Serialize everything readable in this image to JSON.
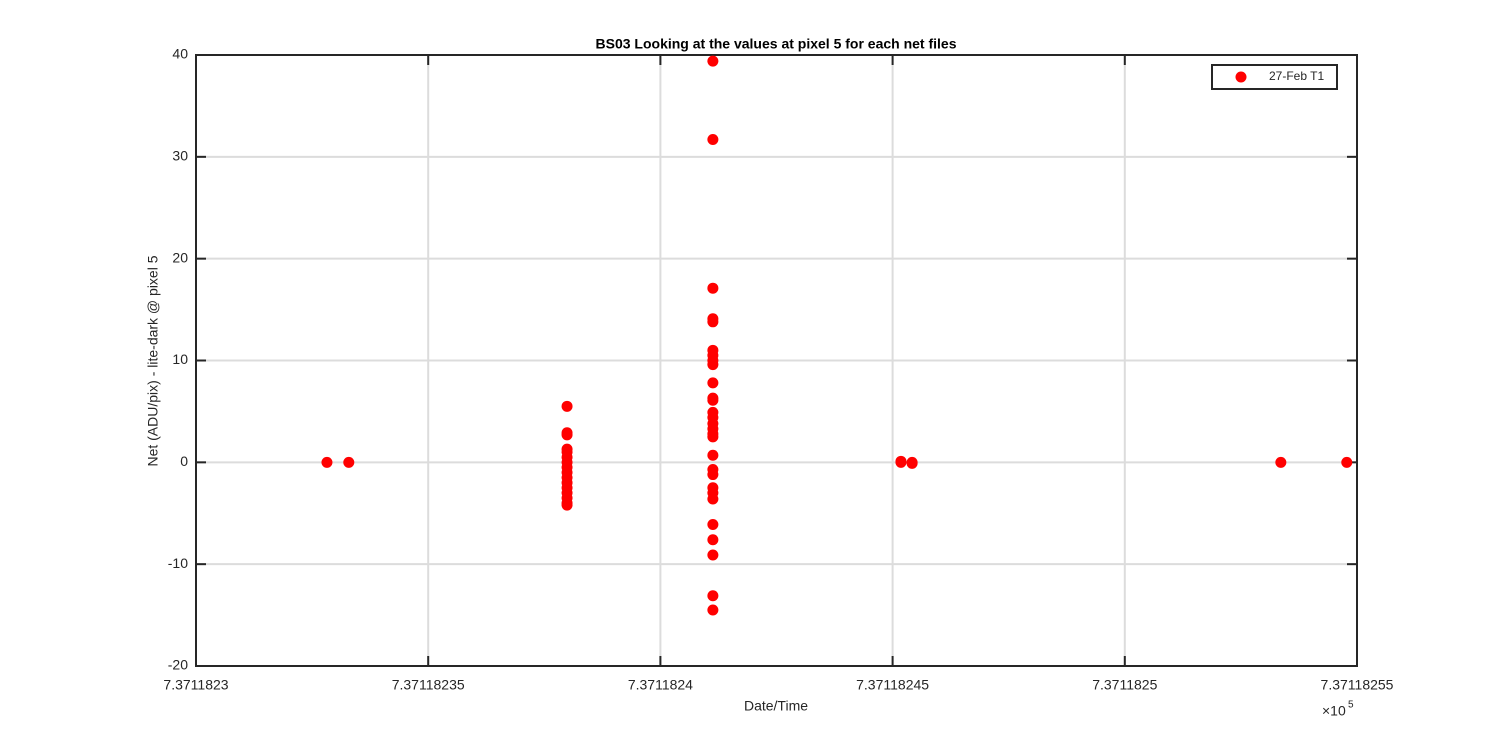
{
  "chart_data": {
    "type": "scatter",
    "title": "BS03  Looking at the values at pixel 5 for each net files",
    "x_label": "Date/Time",
    "y_label": "Net (ADU/pix) - lite-dark @ pixel 5",
    "x_multiplier": "×10",
    "x_multiplier_exp": "5",
    "xlim": [
      7.3711823,
      7.37118255
    ],
    "xticks": [
      7.3711823,
      7.37118235,
      7.3711824,
      7.37118245,
      7.3711825,
      7.37118255
    ],
    "ylim": [
      -20,
      40
    ],
    "yticks": [
      -20,
      -10,
      0,
      10,
      20,
      30,
      40
    ],
    "grid": true,
    "legend": "northeast",
    "series": [
      {
        "name": "27-Feb T1",
        "color": "#ff0000",
        "x": [
          7.3711823282,
          7.3711823329,
          7.3711823799,
          7.3711823799,
          7.3711823799,
          7.3711823799,
          7.3711823799,
          7.3711823799,
          7.3711823799,
          7.3711823799,
          7.3711823799,
          7.3711823799,
          7.3711823799,
          7.3711823799,
          7.3711823799,
          7.3711823799,
          7.3711823799,
          7.3711823799,
          7.3711824113,
          7.3711824113,
          7.3711824113,
          7.3711824113,
          7.3711824113,
          7.3711824113,
          7.3711824113,
          7.3711824113,
          7.3711824113,
          7.3711824113,
          7.3711824113,
          7.3711824113,
          7.3711824113,
          7.3711824113,
          7.3711824113,
          7.3711824113,
          7.3711824113,
          7.3711824113,
          7.3711824113,
          7.3711824113,
          7.3711824113,
          7.3711824113,
          7.3711824113,
          7.3711824113,
          7.3711824113,
          7.3711824113,
          7.3711824113,
          7.3711824113,
          7.3711824113,
          7.3711824518,
          7.3711824518,
          7.3711824542,
          7.3711824542,
          7.3711825336,
          7.3711825478
        ],
        "values": [
          0,
          0,
          5.5,
          2.9,
          2.7,
          1.3,
          1.0,
          0.5,
          0,
          -0.5,
          -1.0,
          -1.5,
          -2.0,
          -2.5,
          -3.0,
          -3.5,
          -4.0,
          -4.2,
          39.4,
          31.7,
          17.1,
          14.1,
          13.8,
          11.0,
          10.5,
          10.0,
          9.6,
          7.8,
          6.3,
          6.1,
          4.9,
          4.4,
          3.8,
          3.3,
          2.8,
          2.5,
          0.7,
          -0.7,
          -1.2,
          -2.5,
          -3.0,
          -3.6,
          -6.1,
          -7.6,
          -9.1,
          -13.1,
          -14.5,
          0.1,
          0,
          0,
          -0.1,
          0,
          0
        ]
      }
    ]
  }
}
